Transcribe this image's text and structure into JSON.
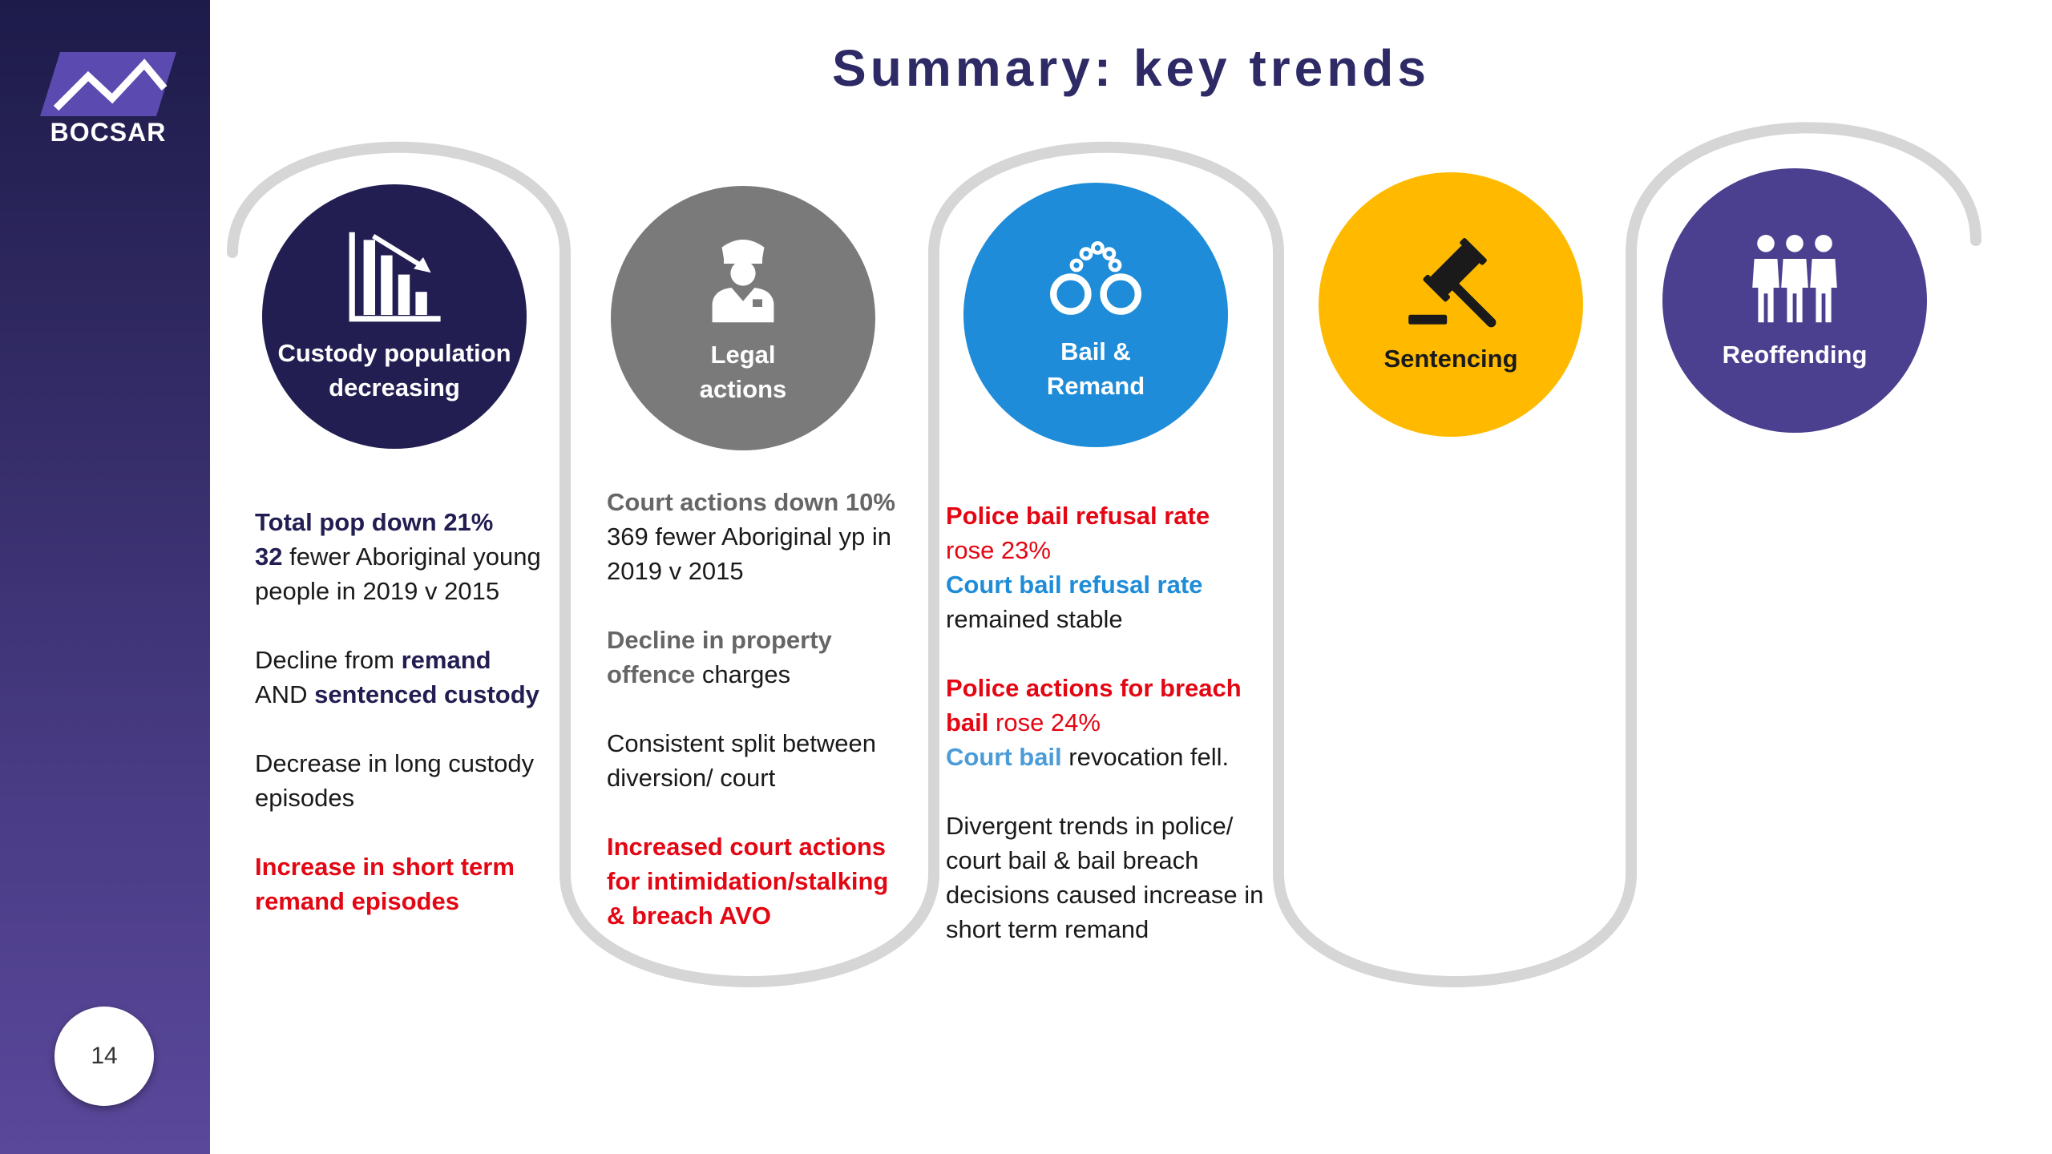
{
  "brand": {
    "name": "BOCSAR"
  },
  "page_number": "14",
  "title": "Summary: key trends",
  "colors": {
    "sidebar_top": "#1d1b4a",
    "sidebar_bottom": "#5a489b",
    "title": "#2e2a66",
    "custody": "#221e52",
    "legal": "#7a7a7a",
    "bail": "#1e8cd8",
    "sentencing": "#ffba00",
    "reoffending": "#4b3f8f",
    "highlight_red": "#e30613",
    "track": "#d6d6d6"
  },
  "stages": [
    {
      "label_line1": "Custody population",
      "label_line2": "decreasing",
      "icon": "declining-bar-chart-icon"
    },
    {
      "label_line1": "Legal",
      "label_line2": "actions",
      "icon": "police-officer-icon"
    },
    {
      "label_line1": "Bail &",
      "label_line2": "Remand",
      "icon": "handcuffs-icon"
    },
    {
      "label_line1": "Sentencing",
      "label_line2": "",
      "icon": "gavel-icon"
    },
    {
      "label_line1": "Reoffending",
      "label_line2": "",
      "icon": "group-people-icon"
    }
  ],
  "custody": {
    "p1": {
      "a": "Total pop down 21%",
      "b": "32",
      "c": " fewer Aboriginal young people in 2019 v 2015"
    },
    "p2": {
      "a": "Decline from ",
      "b": "remand",
      "c": "AND ",
      "d": "sentenced custody"
    },
    "p3": "Decrease in long custody episodes",
    "p4": "Increase in short term remand episodes"
  },
  "legal": {
    "p1": {
      "a": "Court actions down 10%",
      "b": "369 fewer Aboriginal yp in 2019 v 2015"
    },
    "p2": {
      "a": "Decline in property offence",
      "b": " charges"
    },
    "p3": "Consistent split between diversion/ court",
    "p4": "Increased court actions for intimidation/stalking & breach AVO"
  },
  "bail": {
    "p1": {
      "a": "Police bail refusal rate",
      "b": "rose 23%",
      "c": "Court bail refusal rate",
      "d": "remained stable"
    },
    "p2": {
      "a": "Police actions for breach bail",
      "b": " rose 24%",
      "c": "Court bail",
      "d": " revocation fell."
    },
    "p3": "Divergent trends in police/ court bail & bail breach decisions caused increase in short term remand"
  }
}
